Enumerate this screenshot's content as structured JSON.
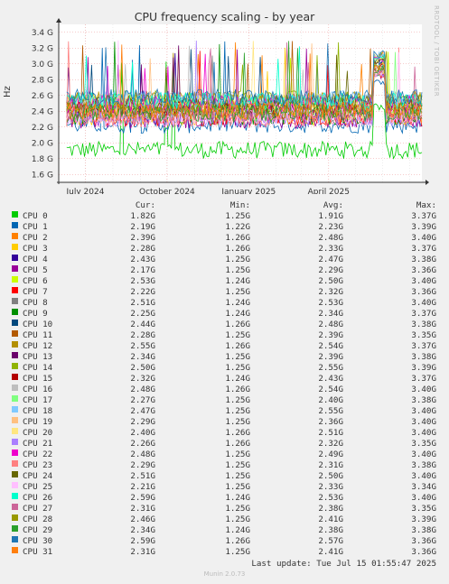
{
  "title": "CPU frequency scaling - by year",
  "watermark": "RRDTOOL / TOBI OETIKER",
  "footer": {
    "last_update": "Last update: Tue Jul 15 01:55:47 2025",
    "version": "Munin 2.0.73"
  },
  "legend_headers": {
    "cur": "Cur:",
    "min": "Min:",
    "avg": "Avg:",
    "max": "Max:"
  },
  "chart_data": {
    "type": "line",
    "title": "CPU frequency scaling - by year",
    "ylabel": "Hz",
    "ylim": [
      1.5,
      3.5
    ],
    "y_unit": "GHz",
    "y_ticks": [
      1.6,
      1.8,
      2.0,
      2.2,
      2.4,
      2.6,
      2.8,
      3.0,
      3.2,
      3.4
    ],
    "y_tick_labels": [
      "1.6 G",
      "1.8 G",
      "2.0 G",
      "2.2 G",
      "2.4 G",
      "2.6 G",
      "2.8 G",
      "3.0 G",
      "3.2 G",
      "3.4 G"
    ],
    "x_range": [
      "2024-06-01",
      "2025-07-15"
    ],
    "x_ticks": [
      {
        "date": "2024-07-01",
        "label": "July 2024"
      },
      {
        "date": "2024-10-01",
        "label": "October 2024"
      },
      {
        "date": "2025-01-01",
        "label": "January 2025"
      },
      {
        "date": "2025-04-01",
        "label": "April 2025"
      }
    ],
    "grid": true,
    "legend_placement": "bottom",
    "series": [
      {
        "name": "CPU 0",
        "color": "#00cc00",
        "cur": "1.82G",
        "min": "1.25G",
        "avg": "1.91G",
        "max": "3.37G"
      },
      {
        "name": "CPU 1",
        "color": "#0066b3",
        "cur": "2.19G",
        "min": "1.22G",
        "avg": "2.23G",
        "max": "3.39G"
      },
      {
        "name": "CPU 2",
        "color": "#ff8000",
        "cur": "2.39G",
        "min": "1.26G",
        "avg": "2.48G",
        "max": "3.40G"
      },
      {
        "name": "CPU 3",
        "color": "#ffcc00",
        "cur": "2.28G",
        "min": "1.26G",
        "avg": "2.33G",
        "max": "3.37G"
      },
      {
        "name": "CPU 4",
        "color": "#330099",
        "cur": "2.43G",
        "min": "1.25G",
        "avg": "2.47G",
        "max": "3.38G"
      },
      {
        "name": "CPU 5",
        "color": "#990099",
        "cur": "2.17G",
        "min": "1.25G",
        "avg": "2.29G",
        "max": "3.36G"
      },
      {
        "name": "CPU 6",
        "color": "#ccff00",
        "cur": "2.53G",
        "min": "1.24G",
        "avg": "2.50G",
        "max": "3.40G"
      },
      {
        "name": "CPU 7",
        "color": "#ff0000",
        "cur": "2.22G",
        "min": "1.25G",
        "avg": "2.32G",
        "max": "3.36G"
      },
      {
        "name": "CPU 8",
        "color": "#808080",
        "cur": "2.51G",
        "min": "1.24G",
        "avg": "2.53G",
        "max": "3.40G"
      },
      {
        "name": "CPU 9",
        "color": "#008f00",
        "cur": "2.25G",
        "min": "1.24G",
        "avg": "2.34G",
        "max": "3.37G"
      },
      {
        "name": "CPU 10",
        "color": "#00487d",
        "cur": "2.44G",
        "min": "1.26G",
        "avg": "2.48G",
        "max": "3.38G"
      },
      {
        "name": "CPU 11",
        "color": "#b35a00",
        "cur": "2.28G",
        "min": "1.25G",
        "avg": "2.39G",
        "max": "3.35G"
      },
      {
        "name": "CPU 12",
        "color": "#b38f00",
        "cur": "2.55G",
        "min": "1.26G",
        "avg": "2.54G",
        "max": "3.37G"
      },
      {
        "name": "CPU 13",
        "color": "#6b006b",
        "cur": "2.34G",
        "min": "1.25G",
        "avg": "2.39G",
        "max": "3.38G"
      },
      {
        "name": "CPU 14",
        "color": "#8fb300",
        "cur": "2.50G",
        "min": "1.25G",
        "avg": "2.55G",
        "max": "3.39G"
      },
      {
        "name": "CPU 15",
        "color": "#b30000",
        "cur": "2.32G",
        "min": "1.24G",
        "avg": "2.43G",
        "max": "3.37G"
      },
      {
        "name": "CPU 16",
        "color": "#bebebe",
        "cur": "2.48G",
        "min": "1.26G",
        "avg": "2.54G",
        "max": "3.40G"
      },
      {
        "name": "CPU 17",
        "color": "#80ff80",
        "cur": "2.27G",
        "min": "1.25G",
        "avg": "2.40G",
        "max": "3.38G"
      },
      {
        "name": "CPU 18",
        "color": "#80c9ff",
        "cur": "2.47G",
        "min": "1.25G",
        "avg": "2.55G",
        "max": "3.40G"
      },
      {
        "name": "CPU 19",
        "color": "#ffc080",
        "cur": "2.29G",
        "min": "1.25G",
        "avg": "2.36G",
        "max": "3.40G"
      },
      {
        "name": "CPU 20",
        "color": "#ffe680",
        "cur": "2.40G",
        "min": "1.26G",
        "avg": "2.51G",
        "max": "3.40G"
      },
      {
        "name": "CPU 21",
        "color": "#aa80ff",
        "cur": "2.26G",
        "min": "1.26G",
        "avg": "2.32G",
        "max": "3.35G"
      },
      {
        "name": "CPU 22",
        "color": "#ee00cc",
        "cur": "2.48G",
        "min": "1.25G",
        "avg": "2.49G",
        "max": "3.40G"
      },
      {
        "name": "CPU 23",
        "color": "#ff8080",
        "cur": "2.29G",
        "min": "1.25G",
        "avg": "2.31G",
        "max": "3.38G"
      },
      {
        "name": "CPU 24",
        "color": "#666600",
        "cur": "2.51G",
        "min": "1.25G",
        "avg": "2.50G",
        "max": "3.40G"
      },
      {
        "name": "CPU 25",
        "color": "#ffbfff",
        "cur": "2.21G",
        "min": "1.25G",
        "avg": "2.33G",
        "max": "3.34G"
      },
      {
        "name": "CPU 26",
        "color": "#00ffcc",
        "cur": "2.59G",
        "min": "1.24G",
        "avg": "2.53G",
        "max": "3.40G"
      },
      {
        "name": "CPU 27",
        "color": "#cc6699",
        "cur": "2.31G",
        "min": "1.25G",
        "avg": "2.38G",
        "max": "3.35G"
      },
      {
        "name": "CPU 28",
        "color": "#999900",
        "cur": "2.46G",
        "min": "1.25G",
        "avg": "2.41G",
        "max": "3.39G"
      },
      {
        "name": "CPU 29",
        "color": "#2ca02c",
        "cur": "2.34G",
        "min": "1.24G",
        "avg": "2.38G",
        "max": "3.38G"
      },
      {
        "name": "CPU 30",
        "color": "#1f77b4",
        "cur": "2.59G",
        "min": "1.26G",
        "avg": "2.57G",
        "max": "3.36G"
      },
      {
        "name": "CPU 31",
        "color": "#ff7f0e",
        "cur": "2.31G",
        "min": "1.25G",
        "avg": "2.41G",
        "max": "3.36G"
      }
    ]
  }
}
